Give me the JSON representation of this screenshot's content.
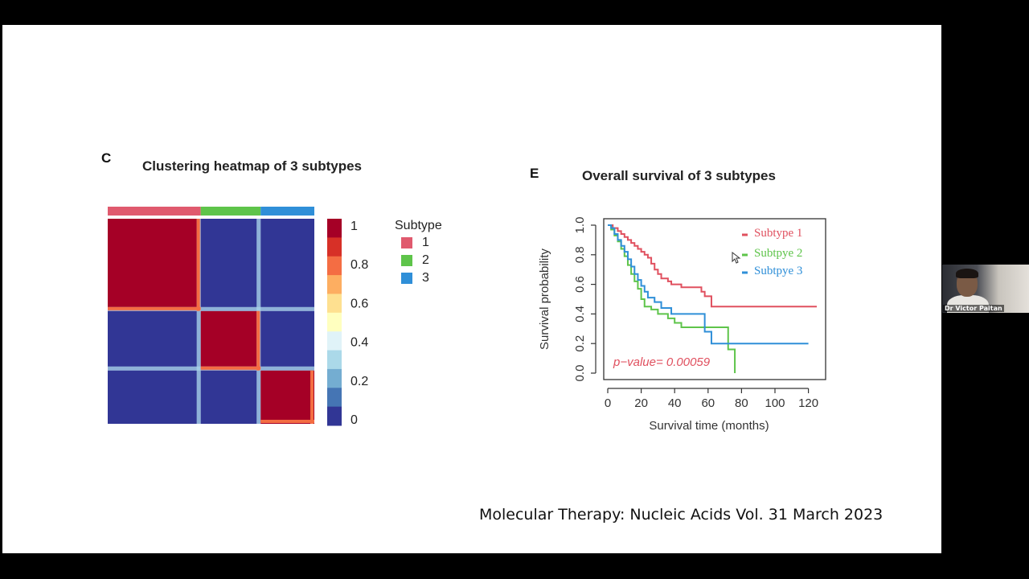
{
  "slide": {
    "citation": "Molecular Therapy: Nucleic Acids Vol. 31 March 2023"
  },
  "webcam": {
    "name": "Dr Victor Paitan"
  },
  "chart_data": [
    {
      "type": "heatmap",
      "panel_letter": "C",
      "title": "Clustering heatmap of 3 subtypes",
      "annotation_groups": [
        "1",
        "1",
        "1",
        "2",
        "2",
        "3",
        "3"
      ],
      "group_sizes": [
        0.45,
        0.29,
        0.26
      ],
      "blocks": [
        [
          1.0,
          0.0,
          0.0
        ],
        [
          0.0,
          1.0,
          0.0
        ],
        [
          0.0,
          0.0,
          1.0
        ]
      ],
      "colorbar": {
        "ticks": [
          "1",
          "0.8",
          "0.6",
          "0.4",
          "0.2",
          "0"
        ],
        "colors": [
          "#a50026",
          "#d73027",
          "#f46d43",
          "#fdae61",
          "#fee090",
          "#ffffbf",
          "#e0f3f8",
          "#abd9e9",
          "#74add1",
          "#4575b4",
          "#313695"
        ]
      },
      "legend": {
        "title": "Subtype",
        "entries": [
          {
            "label": "1",
            "color": "#e05a6e"
          },
          {
            "label": "2",
            "color": "#5ec44a"
          },
          {
            "label": "3",
            "color": "#2f8fd8"
          }
        ]
      }
    },
    {
      "type": "line",
      "panel_letter": "E",
      "title": "Overall survival of 3 subtypes",
      "xlabel": "Survival time (months)",
      "ylabel": "Survival probability",
      "xlim": [
        0,
        125
      ],
      "ylim": [
        0,
        1
      ],
      "xticks": [
        "0",
        "20",
        "40",
        "60",
        "80",
        "100",
        "120"
      ],
      "yticks": [
        "0.0",
        "0.2",
        "0.4",
        "0.6",
        "0.8",
        "1.0"
      ],
      "annotation": "p−value= 0.00059",
      "series": [
        {
          "name": "Subtype 1",
          "color": "#e0505f",
          "x": [
            0,
            3,
            6,
            8,
            10,
            12,
            14,
            16,
            18,
            20,
            22,
            24,
            26,
            28,
            30,
            32,
            36,
            38,
            44,
            50,
            56,
            58,
            62,
            125
          ],
          "y": [
            1.0,
            0.98,
            0.96,
            0.94,
            0.92,
            0.9,
            0.88,
            0.86,
            0.84,
            0.82,
            0.8,
            0.78,
            0.74,
            0.7,
            0.67,
            0.64,
            0.62,
            0.6,
            0.58,
            0.58,
            0.55,
            0.52,
            0.45,
            0.45
          ]
        },
        {
          "name": "Subtpye 2",
          "color": "#5ec44a",
          "x": [
            0,
            2,
            4,
            6,
            8,
            10,
            12,
            14,
            16,
            18,
            20,
            22,
            26,
            30,
            36,
            40,
            44,
            52,
            72,
            74,
            76
          ],
          "y": [
            1.0,
            0.97,
            0.93,
            0.89,
            0.84,
            0.79,
            0.73,
            0.67,
            0.62,
            0.57,
            0.5,
            0.45,
            0.43,
            0.4,
            0.37,
            0.34,
            0.31,
            0.31,
            0.16,
            0.16,
            0.0
          ]
        },
        {
          "name": "Subtpye 3",
          "color": "#2f8fd8",
          "x": [
            0,
            2,
            4,
            6,
            8,
            10,
            12,
            14,
            16,
            18,
            20,
            22,
            24,
            28,
            32,
            38,
            44,
            50,
            58,
            62,
            120
          ],
          "y": [
            1.0,
            0.98,
            0.94,
            0.9,
            0.86,
            0.82,
            0.77,
            0.72,
            0.67,
            0.63,
            0.59,
            0.55,
            0.51,
            0.48,
            0.44,
            0.4,
            0.4,
            0.4,
            0.28,
            0.2,
            0.2
          ]
        }
      ]
    }
  ]
}
